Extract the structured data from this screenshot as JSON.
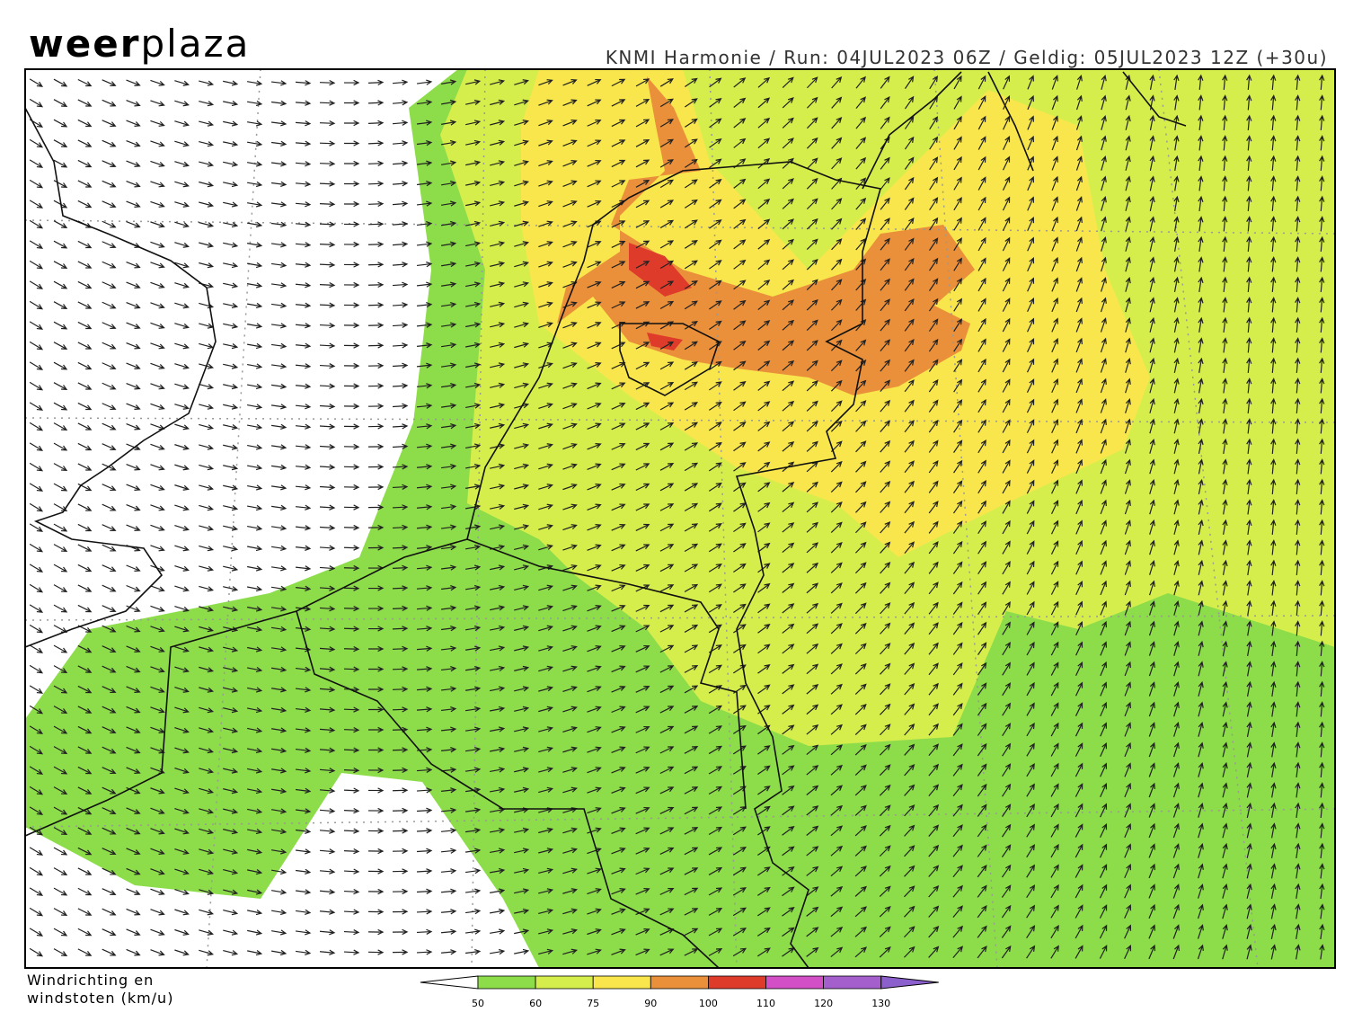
{
  "logo": {
    "bold": "weer",
    "light": "plaza"
  },
  "header": "KNMI Harmonie / Run: 04JUL2023 06Z / Geldig: 05JUL2023 12Z (+30u)",
  "legend": {
    "title": [
      "Windrichting en",
      "windstoten (km/u)"
    ],
    "ticks": [
      50,
      60,
      75,
      90,
      100,
      110,
      120,
      130
    ],
    "colors": [
      "#ffffff",
      "#8ddc4a",
      "#d6ee4c",
      "#f8e64c",
      "#ea8f3a",
      "#de3b2b",
      "#d24fc6",
      "#a45fcc",
      "#8b5fcc"
    ]
  }
}
